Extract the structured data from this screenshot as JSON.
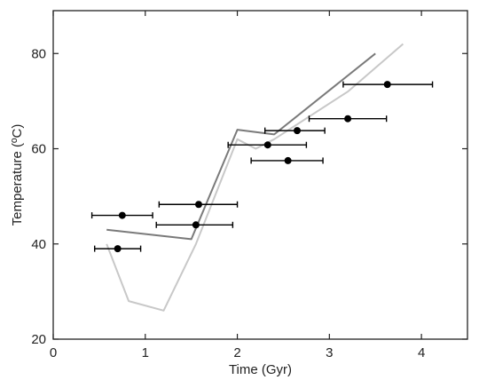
{
  "chart_data": {
    "type": "scatter",
    "xlabel": "Time (Gyr)",
    "ylabel": "Temperature (ºC)",
    "xlim": [
      0,
      4.5
    ],
    "ylim": [
      20,
      89
    ],
    "xticks": [
      "0",
      "1",
      "2",
      "3",
      "4"
    ],
    "yticks": [
      "20",
      "40",
      "60",
      "80"
    ],
    "grid": false,
    "series": [
      {
        "kind": "points-with-xerror",
        "color": "#000000",
        "points": [
          {
            "x": 0.75,
            "y": 46.0,
            "xerr": [
              0.42,
              1.08
            ]
          },
          {
            "x": 0.7,
            "y": 39.0,
            "xerr": [
              0.45,
              0.95
            ]
          },
          {
            "x": 1.58,
            "y": 48.3,
            "xerr": [
              1.15,
              2.0
            ]
          },
          {
            "x": 1.55,
            "y": 44.0,
            "xerr": [
              1.12,
              1.95
            ]
          },
          {
            "x": 2.33,
            "y": 60.8,
            "xerr": [
              1.9,
              2.75
            ]
          },
          {
            "x": 2.55,
            "y": 57.5,
            "xerr": [
              2.15,
              2.93
            ]
          },
          {
            "x": 2.65,
            "y": 63.8,
            "xerr": [
              2.3,
              2.95
            ]
          },
          {
            "x": 3.2,
            "y": 66.3,
            "xerr": [
              2.78,
              3.62
            ]
          },
          {
            "x": 3.63,
            "y": 73.5,
            "xerr": [
              3.15,
              4.12
            ]
          }
        ]
      },
      {
        "kind": "line",
        "color": "#7a7a7a",
        "x": [
          0.58,
          1.5,
          2.0,
          2.4,
          3.5
        ],
        "y": [
          43.0,
          41.0,
          64.0,
          63.0,
          80.0
        ]
      },
      {
        "kind": "line",
        "color": "#c8c8c8",
        "x": [
          0.58,
          0.82,
          1.2,
          1.55,
          2.0,
          2.2,
          2.4,
          3.2,
          3.8
        ],
        "y": [
          40.0,
          28.0,
          26.0,
          40.0,
          62.0,
          60.0,
          62.0,
          72.0,
          82.0
        ]
      }
    ]
  }
}
